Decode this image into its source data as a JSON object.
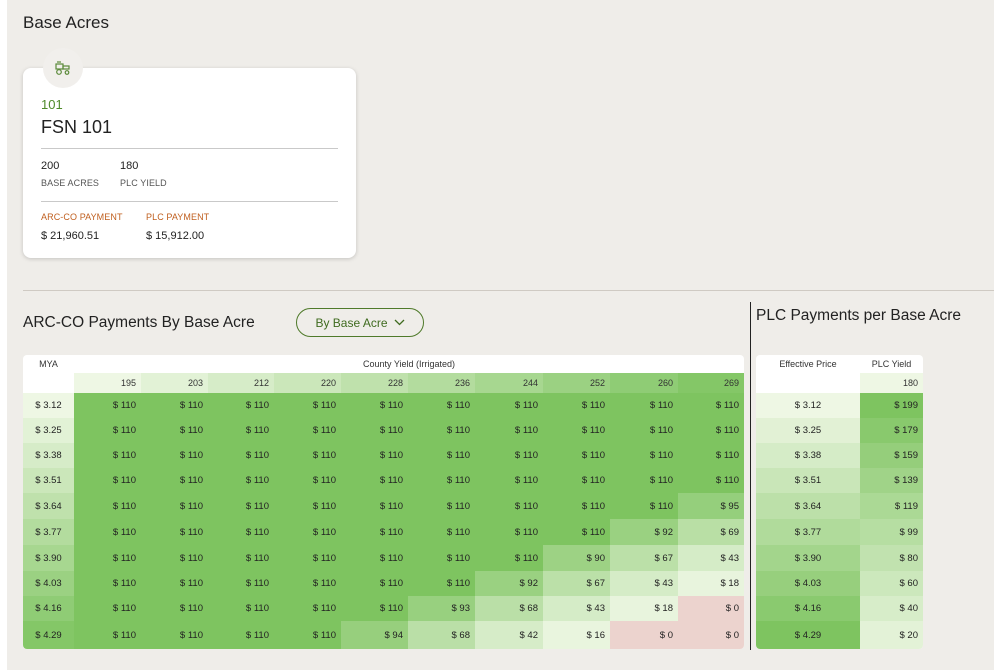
{
  "base_acres": {
    "title": "Base Acres",
    "card": {
      "icon": "tractor-icon",
      "farm_id": "101",
      "farm_name": "FSN 101",
      "base_acres_value": "200",
      "base_acres_label": "BASE ACRES",
      "plc_yield_value": "180",
      "plc_yield_label": "PLC YIELD",
      "arc_payment_label": "ARC-CO PAYMENT",
      "arc_payment_value": "$ 21,960.51",
      "plc_payment_label": "PLC PAYMENT",
      "plc_payment_value": "$ 15,912.00"
    }
  },
  "arc": {
    "title": "ARC-CO Payments By Base Acre",
    "dropdown_label": "By Base Acre",
    "mya_label": "MYA",
    "county_yield_label": "County Yield (Irrigated)",
    "yields": [
      "195",
      "203",
      "212",
      "220",
      "228",
      "236",
      "244",
      "252",
      "260",
      "269"
    ],
    "mya": [
      "$ 3.12",
      "$ 3.25",
      "$ 3.38",
      "$ 3.51",
      "$ 3.64",
      "$ 3.77",
      "$ 3.90",
      "$ 4.03",
      "$ 4.16",
      "$ 4.29"
    ],
    "rows": [
      [
        "$ 110",
        "$ 110",
        "$ 110",
        "$ 110",
        "$ 110",
        "$ 110",
        "$ 110",
        "$ 110",
        "$ 110",
        "$ 110"
      ],
      [
        "$ 110",
        "$ 110",
        "$ 110",
        "$ 110",
        "$ 110",
        "$ 110",
        "$ 110",
        "$ 110",
        "$ 110",
        "$ 110"
      ],
      [
        "$ 110",
        "$ 110",
        "$ 110",
        "$ 110",
        "$ 110",
        "$ 110",
        "$ 110",
        "$ 110",
        "$ 110",
        "$ 110"
      ],
      [
        "$ 110",
        "$ 110",
        "$ 110",
        "$ 110",
        "$ 110",
        "$ 110",
        "$ 110",
        "$ 110",
        "$ 110",
        "$ 110"
      ],
      [
        "$ 110",
        "$ 110",
        "$ 110",
        "$ 110",
        "$ 110",
        "$ 110",
        "$ 110",
        "$ 110",
        "$ 110",
        "$ 95"
      ],
      [
        "$ 110",
        "$ 110",
        "$ 110",
        "$ 110",
        "$ 110",
        "$ 110",
        "$ 110",
        "$ 110",
        "$ 92",
        "$ 69"
      ],
      [
        "$ 110",
        "$ 110",
        "$ 110",
        "$ 110",
        "$ 110",
        "$ 110",
        "$ 110",
        "$ 90",
        "$ 67",
        "$ 43"
      ],
      [
        "$ 110",
        "$ 110",
        "$ 110",
        "$ 110",
        "$ 110",
        "$ 110",
        "$ 92",
        "$ 67",
        "$ 43",
        "$ 18"
      ],
      [
        "$ 110",
        "$ 110",
        "$ 110",
        "$ 110",
        "$ 110",
        "$ 93",
        "$ 68",
        "$ 43",
        "$ 18",
        "$ 0"
      ],
      [
        "$ 110",
        "$ 110",
        "$ 110",
        "$ 110",
        "$ 94",
        "$ 68",
        "$ 42",
        "$ 16",
        "$ 0",
        "$ 0"
      ]
    ]
  },
  "plc": {
    "title": "PLC Payments per Base Acre",
    "effective_price_label": "Effective Price",
    "plc_yield_label": "PLC Yield",
    "plc_yield_value": "180",
    "prices": [
      "$ 3.12",
      "$ 3.25",
      "$ 3.38",
      "$ 3.51",
      "$ 3.64",
      "$ 3.77",
      "$ 3.90",
      "$ 4.03",
      "$ 4.16",
      "$ 4.29"
    ],
    "payments": [
      "$ 199",
      "$ 179",
      "$ 159",
      "$ 139",
      "$ 119",
      "$ 99",
      "$ 80",
      "$ 60",
      "$ 40",
      "$ 20"
    ]
  },
  "colors": {
    "green_dark": "#7ec460",
    "green_light": "#eef7e4",
    "zero_pink": "#ecd3ce",
    "accent_green": "#4f8a2a",
    "accent_orange": "#c05f1f"
  }
}
